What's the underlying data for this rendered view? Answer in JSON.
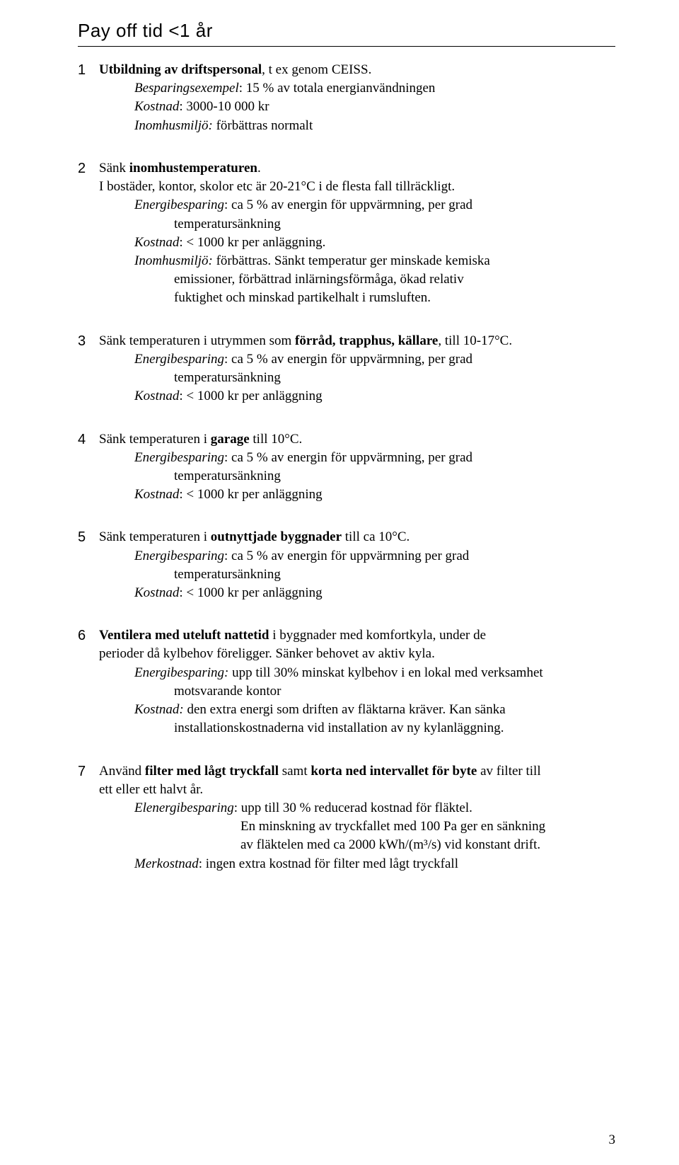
{
  "page": {
    "background_color": "#ffffff",
    "text_color": "#000000",
    "body_font": "Palatino Linotype",
    "heading_font": "Comic Sans MS",
    "body_fontsize_pt": 14,
    "heading_fontsize_pt": 20,
    "number": "3"
  },
  "section_title": "Pay off tid <1 år",
  "items": {
    "i1": {
      "num": "1",
      "title_prefix": "Utbildning av driftspersonal",
      "title_suffix": ", t ex genom CEISS.",
      "l2": "Besparingsexempel",
      "l2b": ": 15 % av totala energianvändningen",
      "l3": "Kostnad",
      "l3b": ": 3000-10 000 kr",
      "l4": "Inomhusmiljö:",
      "l4b": " förbättras normalt"
    },
    "i2": {
      "num": "2",
      "t1": "Sänk ",
      "t1b": "inomhustemperaturen",
      "t1c": ".",
      "l1": "I bostäder, kontor, skolor etc är 20-21°C i de flesta fall tillräckligt.",
      "l2": "Energibesparing",
      "l2b": ": ca 5 % av energin för uppvärmning, per grad",
      "l2sub": "temperatursänkning",
      "l3": "Kostnad",
      "l3b": ": < 1000 kr per anläggning.",
      "l4": "Inomhusmiljö:",
      "l4b": " förbättras. Sänkt temperatur ger minskade kemiska",
      "l4sub1": "emissioner, förbättrad inlärningsförmåga, ökad relativ",
      "l4sub2": "fuktighet och minskad partikelhalt i rumsluften."
    },
    "i3": {
      "num": "3",
      "t1": "Sänk temperaturen i utrymmen som ",
      "t1b": "förråd, trapphus, källare",
      "t1c": ", till 10-17°C.",
      "l2": "Energibesparing",
      "l2b": ": ca 5 % av energin för uppvärmning, per grad",
      "l2sub": "temperatursänkning",
      "l3": "Kostnad",
      "l3b": ": < 1000 kr per anläggning"
    },
    "i4": {
      "num": "4",
      "t1": "Sänk temperaturen i ",
      "t1b": "garage",
      "t1c": " till 10°C.",
      "l2": "Energibesparing",
      "l2b": ": ca 5 % av energin för uppvärmning, per grad",
      "l2sub": "temperatursänkning",
      "l3": "Kostnad",
      "l3b": ": < 1000 kr per anläggning"
    },
    "i5": {
      "num": "5",
      "t1": "Sänk temperaturen i ",
      "t1b": "outnyttjade byggnader",
      "t1c": " till ca 10°C.",
      "l2": "Energibesparing",
      "l2b": ": ca 5 % av energin för uppvärmning per grad",
      "l2sub": "temperatursänkning",
      "l3": "Kostnad",
      "l3b": ": < 1000 kr per anläggning"
    },
    "i6": {
      "num": "6",
      "t1b": "Ventilera med uteluft nattetid",
      "t1c": " i byggnader med komfortkyla, under de",
      "t1d": "perioder då kylbehov föreligger. Sänker behovet av aktiv kyla.",
      "l2": "Energibesparing:",
      "l2b": " upp till 30% minskat kylbehov i en lokal med verksamhet",
      "l2sub": "motsvarande kontor",
      "l3": "Kostnad:",
      "l3b": " den extra energi som driften av fläktarna kräver. Kan sänka",
      "l3sub": "installationskostnaderna vid installation av ny kylanläggning."
    },
    "i7": {
      "num": "7",
      "t1a": " Använd ",
      "t1b": "filter med lågt tryckfall",
      "t1c": " samt ",
      "t1d": "korta ned intervallet för byte",
      "t1e": " av filter till",
      "t1f": "ett eller ett halvt år.",
      "l2": "Elenergibesparing",
      "l2b": ":   upp till 30 % reducerad kostnad för fläktel.",
      "l2sub1": "En minskning av tryckfallet med 100 Pa ger en sänkning",
      "l2sub2": "av fläktelen med ca 2000 kWh/(m³/s) vid konstant drift.",
      "l3": "Merkostnad",
      "l3b": ": ingen extra kostnad för filter med lågt tryckfall"
    }
  }
}
